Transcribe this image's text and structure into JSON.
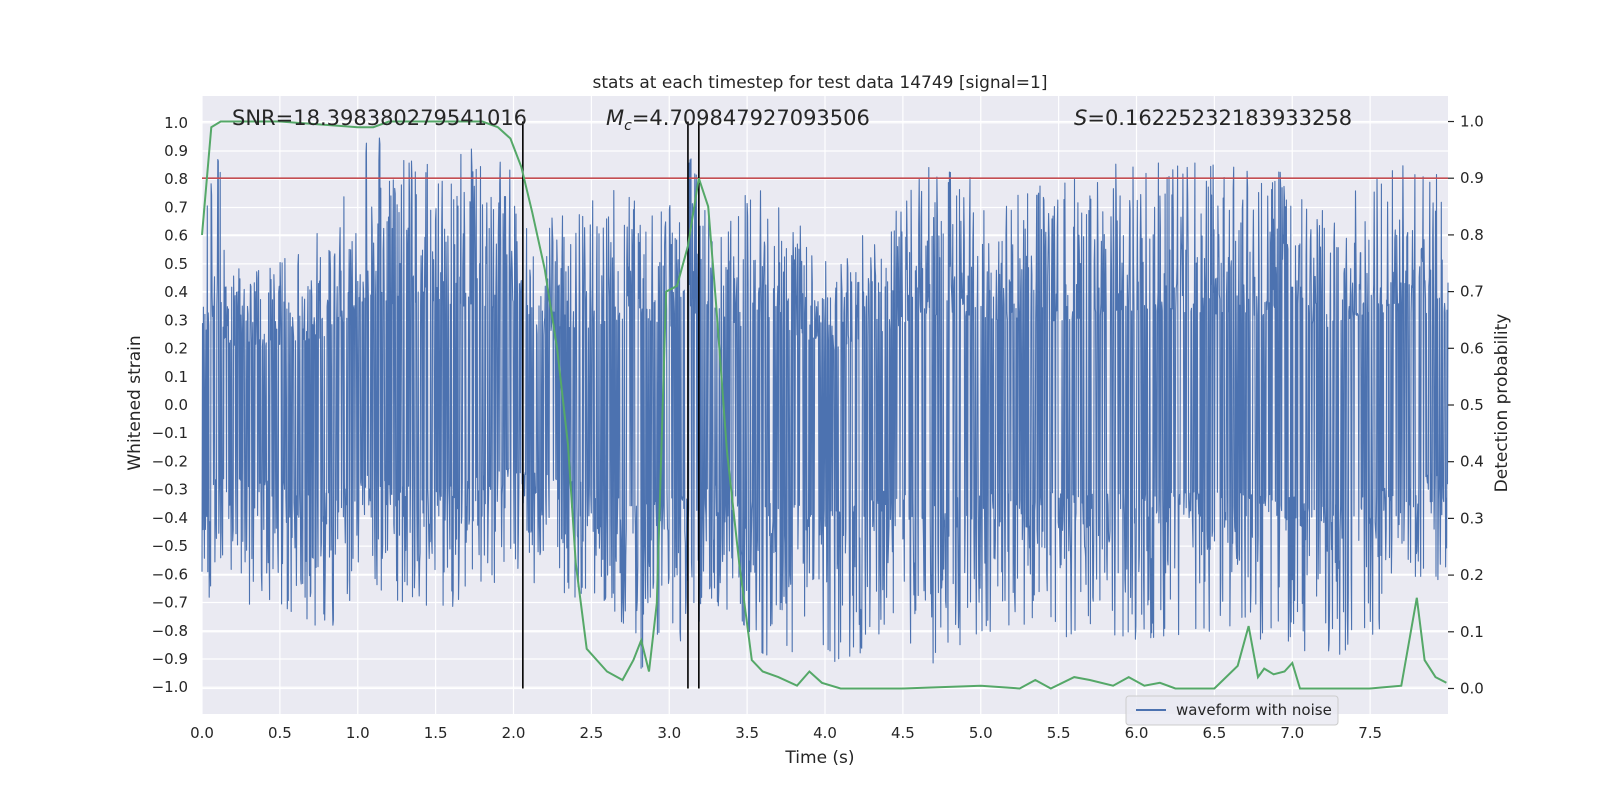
{
  "chart_data": {
    "type": "line",
    "title": "stats at each timestep for test data 14749 [signal=1]",
    "xlabel": "Time (s)",
    "ylabel": "Whitened strain",
    "ylabel_right": "Detection probability",
    "xlim": [
      0.0,
      8.0
    ],
    "ylim": [
      -1.095,
      1.095
    ],
    "ylim_right": [
      -0.045,
      1.045
    ],
    "x_ticks": [
      "0.0",
      "0.5",
      "1.0",
      "1.5",
      "2.0",
      "2.5",
      "3.0",
      "3.5",
      "4.0",
      "4.5",
      "5.0",
      "5.5",
      "6.0",
      "6.5",
      "7.0",
      "7.5"
    ],
    "y_ticks": [
      "1.0",
      "0.9",
      "0.8",
      "0.7",
      "0.6",
      "0.5",
      "0.4",
      "0.3",
      "0.2",
      "0.1",
      "0.0",
      "-0.1",
      "-0.2",
      "-0.3",
      "-0.4",
      "-0.5",
      "-0.6",
      "-0.7",
      "-0.8",
      "-0.9",
      "-1.0"
    ],
    "y_ticks_right": [
      "1.0",
      "0.9",
      "0.8",
      "0.7",
      "0.6",
      "0.5",
      "0.4",
      "0.3",
      "0.2",
      "0.1",
      "0.0"
    ],
    "threshold": 0.9,
    "vlines": [
      2.06,
      3.12,
      3.19
    ],
    "annotations": {
      "snr": "SNR=18.398380279541016",
      "mc_label": "M",
      "mc_sub": "c",
      "mc_value": "=4.709847927093506",
      "s_label": "S",
      "s_value": "=0.16225232183933258"
    },
    "legend": {
      "label": "waveform with noise",
      "location": "lower-right"
    },
    "series": [
      {
        "name": "waveform with noise",
        "color": "#4c72b0",
        "axis": "left",
        "note": "dense noisy strain, envelope sampled at peaks",
        "x": [
          0.0,
          0.07,
          0.1,
          0.15,
          0.3,
          0.5,
          0.78,
          1.05,
          1.5,
          2.0,
          2.06,
          2.5,
          2.8,
          3.0,
          3.12,
          3.3,
          3.6,
          4.07,
          4.5,
          4.6,
          5.0,
          5.5,
          6.0,
          6.5,
          7.0,
          7.2,
          7.5,
          7.99
        ],
        "upper": [
          0.6,
          0.82,
          0.95,
          0.58,
          0.52,
          0.55,
          0.62,
          0.95,
          0.93,
          0.88,
          0.62,
          0.72,
          0.84,
          0.7,
          0.9,
          0.68,
          0.78,
          0.5,
          0.75,
          0.85,
          0.8,
          0.78,
          0.88,
          0.85,
          0.82,
          0.7,
          0.86,
          0.84
        ],
        "lower": [
          -0.6,
          -0.75,
          -0.58,
          -0.6,
          -0.72,
          -0.7,
          -0.83,
          -0.62,
          -0.78,
          -0.58,
          -0.62,
          -0.7,
          -0.95,
          -0.8,
          -0.86,
          -0.72,
          -0.88,
          -0.99,
          -0.72,
          -0.97,
          -0.8,
          -0.82,
          -0.83,
          -0.8,
          -0.85,
          -0.94,
          -0.82,
          -0.6
        ]
      },
      {
        "name": "detection probability",
        "color": "#55a868",
        "axis": "right",
        "x": [
          0.0,
          0.06,
          0.12,
          0.5,
          1.0,
          1.1,
          1.2,
          1.5,
          1.8,
          1.9,
          1.98,
          2.05,
          2.12,
          2.2,
          2.28,
          2.35,
          2.4,
          2.47,
          2.6,
          2.7,
          2.77,
          2.82,
          2.87,
          2.92,
          2.98,
          3.05,
          3.12,
          3.19,
          3.25,
          3.3,
          3.37,
          3.45,
          3.53,
          3.6,
          3.7,
          3.82,
          3.9,
          3.98,
          4.1,
          4.5,
          5.0,
          5.25,
          5.35,
          5.45,
          5.6,
          5.7,
          5.85,
          5.95,
          6.05,
          6.15,
          6.25,
          6.5,
          6.65,
          6.72,
          6.78,
          6.82,
          6.88,
          6.95,
          7.0,
          7.05,
          7.2,
          7.5,
          7.7,
          7.8,
          7.85,
          7.92,
          7.99
        ],
        "y": [
          0.8,
          0.99,
          1.0,
          1.0,
          0.99,
          0.99,
          1.0,
          1.0,
          1.0,
          0.99,
          0.97,
          0.92,
          0.84,
          0.74,
          0.6,
          0.43,
          0.22,
          0.07,
          0.03,
          0.015,
          0.05,
          0.085,
          0.03,
          0.15,
          0.7,
          0.71,
          0.78,
          0.9,
          0.85,
          0.68,
          0.42,
          0.22,
          0.05,
          0.03,
          0.02,
          0.005,
          0.03,
          0.01,
          0.0,
          0.0,
          0.005,
          0.0,
          0.015,
          0.0,
          0.02,
          0.015,
          0.005,
          0.02,
          0.005,
          0.01,
          0.0,
          0.0,
          0.04,
          0.11,
          0.02,
          0.035,
          0.025,
          0.03,
          0.045,
          0.0,
          0.0,
          0.0,
          0.005,
          0.16,
          0.05,
          0.02,
          0.01
        ]
      }
    ]
  }
}
